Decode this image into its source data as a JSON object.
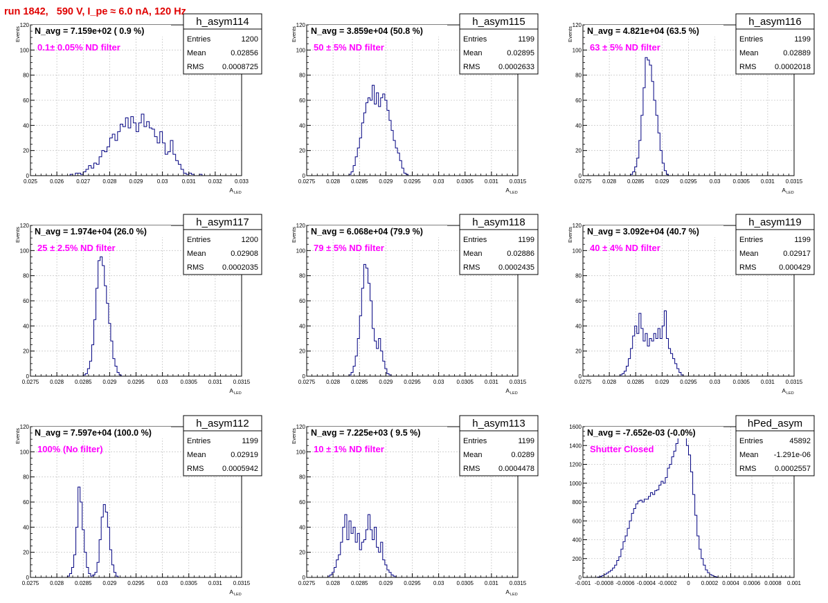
{
  "run_title": "run 1842,   590 V, I_pe ≈ 6.0 nA, 120 Hz",
  "colors": {
    "histogram": "#000080",
    "annotation": "#ff00ff",
    "run_title": "#e00000",
    "grid": "#c8c8c8"
  },
  "chart_data": [
    {
      "type": "histogram",
      "name": "h_asym114",
      "title": "N_avg = 7.159e+02 ( 0.9 %)",
      "annotation": "0.1± 0.05% ND filter",
      "stats": {
        "entries_label": "Entries",
        "entries": "1200",
        "mean_label": "Mean",
        "mean": "0.02856",
        "rms_label": "RMS",
        "rms": "0.0008725"
      },
      "ylabel": "Events",
      "xlabel": "A",
      "xlabel_sub": "LED",
      "xlim": [
        0.025,
        0.033
      ],
      "ylim": [
        0,
        120
      ],
      "grid": true,
      "xticks": [
        "0.025",
        "0.026",
        "0.027",
        "0.028",
        "0.029",
        "0.03",
        "0.031",
        "0.032",
        "0.033"
      ],
      "yticks": [
        "0",
        "20",
        "40",
        "60",
        "80",
        "100",
        "120"
      ],
      "bins": {
        "start": 0.0265,
        "width": 0.0001,
        "values": [
          1,
          0,
          2,
          2,
          1,
          3,
          5,
          8,
          6,
          10,
          9,
          15,
          20,
          19,
          23,
          30,
          33,
          28,
          35,
          41,
          39,
          46,
          38,
          47,
          42,
          35,
          42,
          49,
          39,
          43,
          38,
          37,
          31,
          26,
          35,
          26,
          17,
          19,
          28,
          17,
          12,
          9,
          5,
          2,
          1,
          2,
          1,
          0,
          0,
          1
        ]
      }
    },
    {
      "type": "histogram",
      "name": "h_asym115",
      "title": "N_avg = 3.859e+04 (50.8 %)",
      "annotation": "50 ± 5% ND filter",
      "stats": {
        "entries_label": "Entries",
        "entries": "1199",
        "mean_label": "Mean",
        "mean": "0.02895",
        "rms_label": "RMS",
        "rms": "0.0002633"
      },
      "ylabel": "Events",
      "xlabel": "A",
      "xlabel_sub": "LED",
      "xlim": [
        0.0275,
        0.0315
      ],
      "ylim": [
        0,
        120
      ],
      "grid": true,
      "xticks": [
        "0.0275",
        "0.028",
        "0.0285",
        "0.029",
        "0.0295",
        "0.03",
        "0.0305",
        "0.031",
        "0.0315"
      ],
      "yticks": [
        "0",
        "20",
        "40",
        "60",
        "80",
        "100",
        "120"
      ],
      "bins": {
        "start": 0.0283,
        "width": 4e-05,
        "values": [
          1,
          3,
          8,
          15,
          22,
          30,
          42,
          50,
          58,
          62,
          60,
          72,
          57,
          66,
          55,
          62,
          65,
          60,
          52,
          44,
          36,
          28,
          22,
          18,
          12,
          6,
          2,
          1
        ]
      }
    },
    {
      "type": "histogram",
      "name": "h_asym116",
      "title": "N_avg = 4.821e+04 (63.5 %)",
      "annotation": "63 ± 5% ND filter",
      "stats": {
        "entries_label": "Entries",
        "entries": "1199",
        "mean_label": "Mean",
        "mean": "0.02889",
        "rms_label": "RMS",
        "rms": "0.0002018"
      },
      "ylabel": "Events",
      "xlabel": "A",
      "xlabel_sub": "LED",
      "xlim": [
        0.0275,
        0.0315
      ],
      "ylim": [
        0,
        120
      ],
      "grid": true,
      "xticks": [
        "0.0275",
        "0.028",
        "0.0285",
        "0.029",
        "0.0295",
        "0.03",
        "0.0305",
        "0.031",
        "0.0315"
      ],
      "yticks": [
        "0",
        "20",
        "40",
        "60",
        "80",
        "100",
        "120"
      ],
      "bins": {
        "start": 0.0284,
        "width": 4e-05,
        "values": [
          1,
          3,
          7,
          14,
          28,
          48,
          70,
          94,
          92,
          88,
          75,
          60,
          48,
          34,
          20,
          10,
          4,
          1
        ]
      }
    },
    {
      "type": "histogram",
      "name": "h_asym117",
      "title": "N_avg = 1.974e+04 (26.0 %)",
      "annotation": "25 ± 2.5% ND filter",
      "stats": {
        "entries_label": "Entries",
        "entries": "1200",
        "mean_label": "Mean",
        "mean": "0.02908",
        "rms_label": "RMS",
        "rms": "0.0002035"
      },
      "ylabel": "Events",
      "xlabel": "A",
      "xlabel_sub": "LED",
      "xlim": [
        0.0275,
        0.0315
      ],
      "ylim": [
        0,
        120
      ],
      "grid": true,
      "xticks": [
        "0.0275",
        "0.028",
        "0.0285",
        "0.029",
        "0.0295",
        "0.03",
        "0.0305",
        "0.031",
        "0.0315"
      ],
      "yticks": [
        "0",
        "20",
        "40",
        "60",
        "80",
        "100",
        "120"
      ],
      "bins": {
        "start": 0.0285,
        "width": 4e-05,
        "values": [
          1,
          2,
          6,
          12,
          25,
          45,
          70,
          92,
          95,
          88,
          72,
          58,
          42,
          28,
          14,
          8,
          3,
          1
        ]
      }
    },
    {
      "type": "histogram",
      "name": "h_asym118",
      "title": "N_avg = 6.068e+04 (79.9 %)",
      "annotation": "79 ± 5% ND filter",
      "stats": {
        "entries_label": "Entries",
        "entries": "1199",
        "mean_label": "Mean",
        "mean": "0.02886",
        "rms_label": "RMS",
        "rms": "0.0002435"
      },
      "ylabel": "Events",
      "xlabel": "A",
      "xlabel_sub": "LED",
      "xlim": [
        0.0275,
        0.0315
      ],
      "ylim": [
        0,
        120
      ],
      "grid": true,
      "xticks": [
        "0.0275",
        "0.028",
        "0.0285",
        "0.029",
        "0.0295",
        "0.03",
        "0.0305",
        "0.031",
        "0.0315"
      ],
      "yticks": [
        "0",
        "20",
        "40",
        "60",
        "80",
        "100",
        "120"
      ],
      "bins": {
        "start": 0.0283,
        "width": 4e-05,
        "values": [
          1,
          3,
          8,
          16,
          30,
          48,
          70,
          89,
          86,
          74,
          60,
          38,
          28,
          22,
          30,
          20,
          12,
          6,
          2,
          1
        ]
      }
    },
    {
      "type": "histogram",
      "name": "h_asym119",
      "title": "N_avg = 3.092e+04 (40.7 %)",
      "annotation": "40 ± 4% ND filter",
      "stats": {
        "entries_label": "Entries",
        "entries": "1199",
        "mean_label": "Mean",
        "mean": "0.02917",
        "rms_label": "RMS",
        "rms": "0.000429"
      },
      "ylabel": "Events",
      "xlabel": "A",
      "xlabel_sub": "LED",
      "xlim": [
        0.0275,
        0.0315
      ],
      "ylim": [
        0,
        120
      ],
      "grid": true,
      "xticks": [
        "0.0275",
        "0.028",
        "0.0285",
        "0.029",
        "0.0295",
        "0.03",
        "0.0305",
        "0.031",
        "0.0315"
      ],
      "yticks": [
        "0",
        "20",
        "40",
        "60",
        "80",
        "100",
        "120"
      ],
      "bins": {
        "start": 0.0282,
        "width": 4e-05,
        "values": [
          1,
          2,
          4,
          8,
          14,
          22,
          32,
          40,
          34,
          50,
          38,
          28,
          34,
          24,
          30,
          28,
          34,
          30,
          38,
          30,
          40,
          52,
          30,
          22,
          18,
          14,
          10,
          6,
          3,
          1
        ]
      }
    },
    {
      "type": "histogram",
      "name": "h_asym112",
      "title": "N_avg = 7.597e+04 (100.0 %)",
      "annotation": "100% (No filter)",
      "stats": {
        "entries_label": "Entries",
        "entries": "1199",
        "mean_label": "Mean",
        "mean": "0.02919",
        "rms_label": "RMS",
        "rms": "0.0005942"
      },
      "ylabel": "Events",
      "xlabel": "A",
      "xlabel_sub": "LED",
      "xlim": [
        0.0275,
        0.0315
      ],
      "ylim": [
        0,
        120
      ],
      "grid": true,
      "xticks": [
        "0.0275",
        "0.028",
        "0.0285",
        "0.029",
        "0.0295",
        "0.03",
        "0.0305",
        "0.031",
        "0.0315"
      ],
      "yticks": [
        "0",
        "20",
        "40",
        "60",
        "80",
        "100",
        "120"
      ],
      "bins": {
        "start": 0.0282,
        "width": 4e-05,
        "values": [
          1,
          3,
          8,
          18,
          40,
          72,
          60,
          38,
          20,
          8,
          3,
          1,
          2,
          4,
          12,
          30,
          48,
          58,
          52,
          40,
          22,
          10,
          4,
          1
        ]
      }
    },
    {
      "type": "histogram",
      "name": "h_asym113",
      "title": "N_avg = 7.225e+03 ( 9.5 %)",
      "annotation": "10 ± 1% ND filter",
      "stats": {
        "entries_label": "Entries",
        "entries": "1199",
        "mean_label": "Mean",
        "mean": "0.0289",
        "rms_label": "RMS",
        "rms": "0.0004478"
      },
      "ylabel": "Events",
      "xlabel": "A",
      "xlabel_sub": "LED",
      "xlim": [
        0.0275,
        0.0315
      ],
      "ylim": [
        0,
        120
      ],
      "grid": true,
      "xticks": [
        "0.0275",
        "0.028",
        "0.0285",
        "0.029",
        "0.0295",
        "0.03",
        "0.0305",
        "0.031",
        "0.0315"
      ],
      "yticks": [
        "0",
        "20",
        "40",
        "60",
        "80",
        "100",
        "120"
      ],
      "bins": {
        "start": 0.0279,
        "width": 4e-05,
        "values": [
          1,
          2,
          4,
          8,
          14,
          18,
          28,
          40,
          50,
          30,
          45,
          35,
          40,
          28,
          35,
          22,
          28,
          30,
          38,
          50,
          38,
          30,
          40,
          24,
          20,
          28,
          14,
          10,
          6,
          4,
          2,
          1
        ]
      }
    },
    {
      "type": "histogram",
      "name": "hPed_asym",
      "title": "N_avg = -7.652e-03 (-0.0%)",
      "annotation": "Shutter Closed",
      "stats": {
        "entries_label": "Entries",
        "entries": "45892",
        "mean_label": "Mean",
        "mean": "-1.291e-06",
        "rms_label": "RMS",
        "rms": "0.0002557"
      },
      "ylabel": "",
      "xlabel": "",
      "xlabel_sub": "",
      "xlim": [
        -0.001,
        0.001
      ],
      "ylim": [
        0,
        1600
      ],
      "grid": true,
      "xticks": [
        "-0.001",
        "-0.0008",
        "-0.0006",
        "-0.0004",
        "-0.0002",
        "0",
        "0.0002",
        "0.0004",
        "0.0006",
        "0.0008",
        "0.001"
      ],
      "yticks": [
        "0",
        "200",
        "400",
        "600",
        "800",
        "1000",
        "1200",
        "1400",
        "1600"
      ],
      "bins": {
        "start": -0.00086,
        "width": 2e-05,
        "values": [
          5,
          10,
          20,
          30,
          45,
          60,
          75,
          100,
          130,
          180,
          220,
          300,
          380,
          440,
          520,
          600,
          680,
          730,
          780,
          810,
          820,
          800,
          830,
          830,
          860,
          900,
          880,
          920,
          930,
          980,
          1020,
          1000,
          1060,
          1160,
          1200,
          1280,
          1340,
          1420,
          1480,
          1560,
          1600,
          1500,
          1400,
          1300,
          1120,
          880,
          660,
          440,
          300,
          200,
          130,
          80,
          50,
          30,
          20,
          10,
          5
        ]
      }
    }
  ]
}
